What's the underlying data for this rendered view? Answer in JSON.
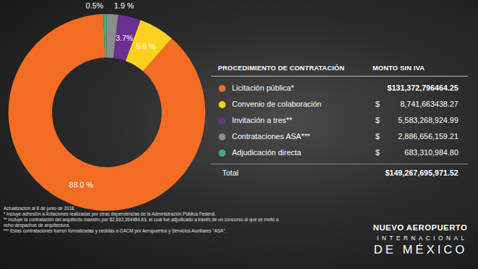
{
  "chart_data": {
    "type": "pie",
    "categories": [
      "Licitación pública*",
      "Convenio de colaboración",
      "Invitación a tres**",
      "Contrataciones ASA***",
      "Adjudicación directa"
    ],
    "values": [
      88.0,
      5.9,
      3.7,
      1.9,
      0.5
    ],
    "value_labels": [
      "88.0 %",
      "5.9 %",
      "3.7%",
      "1.9 %",
      "0.5%"
    ],
    "colors": [
      "#f26c23",
      "#fdd21f",
      "#6b2f92",
      "#8c8c8c",
      "#3bb07b"
    ],
    "data_labels": true
  },
  "table": {
    "header": [
      "PROCEDIMIENTO DE CONTRATACIÓN",
      "MONTO SIN IVA"
    ],
    "currency": "$",
    "amounts": [
      "$131,372,796464.25",
      "8,741,663438.27",
      "5,583,268,924.99",
      "2,886,656,159.21",
      "683,310,984.80"
    ],
    "total_label": "Total",
    "total": "$149,267,695,971.52"
  },
  "footnotes": [
    "Actualización al 8 de junio de 2018.",
    "* Incluye adhesión a licitaciones realizadas por otras dependencias de la Administración Pública Federal.",
    "** Incluye la contratación del arquitecto maestro por $2,692,364484.63, el cual fue adjudicado a través de un concurso al que se invitó a ocho despachos de arquitectura.",
    "*** Estas contrataciones fueron formalizadas y cedidas a GACM por Aeropuertos y Servicios Auxiliares \"ASA\"."
  ],
  "logo": [
    "NUEVO AEROPUERTO",
    "INTERNACIONAL",
    "DE MÉXICO"
  ]
}
